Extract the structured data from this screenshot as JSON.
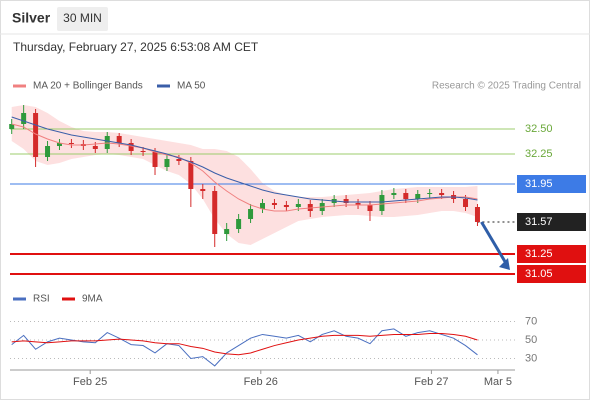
{
  "header": {
    "title": "Silver",
    "interval": "30 MIN",
    "timestamp": "Thursday, February 27, 2025 6:53:08 AM CET",
    "credit": "Research © 2025 Trading Central"
  },
  "chart_data": [
    {
      "type": "candlestick",
      "x": [
        -0.46,
        -0.39,
        -0.32,
        -0.25,
        -0.18,
        -0.11,
        -0.04,
        0.03,
        0.1,
        0.17,
        0.24,
        0.31,
        0.38,
        0.45,
        0.52,
        0.59,
        0.66,
        0.73,
        0.8,
        0.87,
        0.94,
        1.01,
        1.08,
        1.15,
        1.22,
        1.29,
        1.36,
        1.43,
        1.5,
        1.57,
        1.64,
        1.71,
        1.78,
        1.85,
        1.92,
        1.99,
        2.06,
        2.13,
        2.2,
        2.27
      ],
      "open": [
        32.5,
        32.55,
        32.66,
        32.22,
        32.33,
        32.36,
        32.35,
        32.33,
        32.3,
        32.43,
        32.36,
        32.28,
        32.27,
        32.12,
        32.2,
        32.18,
        31.9,
        31.88,
        31.45,
        31.5,
        31.6,
        31.7,
        31.76,
        31.74,
        31.72,
        31.75,
        31.68,
        31.76,
        31.8,
        31.76,
        31.74,
        31.68,
        31.84,
        31.86,
        31.8,
        31.85,
        31.86,
        31.84,
        31.8,
        31.72
      ],
      "high": [
        32.6,
        32.74,
        32.7,
        32.38,
        32.4,
        32.4,
        32.39,
        32.37,
        32.47,
        32.46,
        32.4,
        32.32,
        32.31,
        32.25,
        32.24,
        32.22,
        31.95,
        31.93,
        31.56,
        31.65,
        31.75,
        31.8,
        31.8,
        31.78,
        31.8,
        31.79,
        31.8,
        31.84,
        31.84,
        31.8,
        31.78,
        31.89,
        31.91,
        31.9,
        31.89,
        31.9,
        31.9,
        31.88,
        31.84,
        31.75
      ],
      "low": [
        32.45,
        32.5,
        32.12,
        32.18,
        32.29,
        32.31,
        32.29,
        32.26,
        32.26,
        32.32,
        32.24,
        32.23,
        32.04,
        32.08,
        32.14,
        31.72,
        31.8,
        31.32,
        31.38,
        31.46,
        31.56,
        31.66,
        31.7,
        31.68,
        31.68,
        31.62,
        31.64,
        31.72,
        31.72,
        31.7,
        31.58,
        31.64,
        31.8,
        31.76,
        31.76,
        31.81,
        31.8,
        31.76,
        31.68,
        31.53
      ],
      "close": [
        32.55,
        32.66,
        32.22,
        32.33,
        32.36,
        32.35,
        32.33,
        32.3,
        32.43,
        32.36,
        32.28,
        32.27,
        32.12,
        32.2,
        32.18,
        31.9,
        31.88,
        31.45,
        31.5,
        31.6,
        31.7,
        31.76,
        31.74,
        31.72,
        31.75,
        31.68,
        31.76,
        31.8,
        31.76,
        31.74,
        31.68,
        31.84,
        31.86,
        31.8,
        31.85,
        31.86,
        31.84,
        31.8,
        31.72,
        31.57
      ],
      "up_color": "#2f9a3c",
      "down_color": "#d42a2a",
      "series": [
        {
          "name": "MA 20 + Bollinger Bands",
          "color": "#f08080",
          "values": [
            32.55,
            32.52,
            32.45,
            32.4,
            32.36,
            32.34,
            32.34,
            32.35,
            32.36,
            32.35,
            32.33,
            32.31,
            32.27,
            32.24,
            32.22,
            32.16,
            32.08,
            31.97,
            31.88,
            31.8,
            31.74,
            31.7,
            31.68,
            31.68,
            31.7,
            31.71,
            31.72,
            31.73,
            31.74,
            31.74,
            31.74,
            31.75,
            31.76,
            31.77,
            31.78,
            31.8,
            31.81,
            31.82,
            31.82,
            31.8
          ]
        },
        {
          "name": "MA 50",
          "color": "#3a5ea8",
          "values": [
            32.62,
            32.58,
            32.54,
            32.5,
            32.47,
            32.44,
            32.42,
            32.4,
            32.38,
            32.36,
            32.34,
            32.31,
            32.28,
            32.25,
            32.21,
            32.17,
            32.12,
            32.06,
            32.01,
            31.97,
            31.93,
            31.89,
            31.86,
            31.84,
            31.82,
            31.8,
            31.79,
            31.78,
            31.77,
            31.77,
            31.77,
            31.77,
            31.78,
            31.79,
            31.8,
            31.81,
            31.82,
            31.82,
            31.81,
            31.79
          ]
        }
      ],
      "band": {
        "color": "#fdd8d8",
        "upper": [
          32.72,
          32.74,
          32.72,
          32.66,
          32.58,
          32.52,
          32.48,
          32.47,
          32.47,
          32.46,
          32.44,
          32.42,
          32.4,
          32.38,
          32.36,
          32.34,
          32.3,
          32.3,
          32.28,
          32.22,
          32.1,
          31.96,
          31.88,
          31.84,
          31.82,
          31.82,
          31.82,
          31.83,
          31.84,
          31.85,
          31.86,
          31.88,
          31.9,
          31.91,
          31.92,
          31.92,
          31.92,
          31.92,
          31.92,
          31.93
        ],
        "lower": [
          32.38,
          32.3,
          32.18,
          32.14,
          32.16,
          32.2,
          32.22,
          32.24,
          32.25,
          32.24,
          32.22,
          32.2,
          32.14,
          32.08,
          32.04,
          31.95,
          31.8,
          31.6,
          31.45,
          31.36,
          31.34,
          31.4,
          31.46,
          31.52,
          31.58,
          31.6,
          31.62,
          31.63,
          31.64,
          31.64,
          31.63,
          31.62,
          31.62,
          31.63,
          31.64,
          31.66,
          31.68,
          31.68,
          31.66,
          31.62
        ]
      },
      "levels": [
        {
          "value": 32.5,
          "label": "32.50",
          "color": "#9ccc6c",
          "kind": "text"
        },
        {
          "value": 32.25,
          "color": "#9ccc6c",
          "kind": "text"
        },
        {
          "value": 31.95,
          "color": "#3d7be6",
          "kind": "box"
        },
        {
          "value": 31.57,
          "color": "#222222",
          "kind": "last"
        },
        {
          "value": 31.25,
          "color": "#e01010",
          "kind": "box"
        },
        {
          "value": 31.05,
          "color": "#e01010",
          "kind": "box"
        }
      ],
      "forecast_color": "#2f5ea8",
      "xlim": [
        -0.47,
        2.49
      ],
      "xticks": [
        {
          "value": 0,
          "label": "Feb 25"
        },
        {
          "value": 1,
          "label": "Feb 26"
        },
        {
          "value": 2,
          "label": "Feb 27"
        },
        {
          "value": 2.39,
          "label": "Mar 5"
        }
      ],
      "ylim": [
        30.94,
        32.79
      ]
    },
    {
      "type": "line",
      "series": [
        {
          "name": "RSI",
          "color": "#4a6fc0",
          "values": [
            45,
            55,
            40,
            48,
            52,
            50,
            48,
            47,
            58,
            52,
            45,
            44,
            36,
            46,
            44,
            30,
            32,
            22,
            36,
            44,
            52,
            56,
            54,
            52,
            55,
            48,
            56,
            60,
            54,
            52,
            46,
            60,
            62,
            54,
            58,
            60,
            56,
            52,
            44,
            34
          ]
        },
        {
          "name": "9MA",
          "color": "#e01010",
          "values": [
            48,
            49,
            48,
            47,
            48,
            49,
            49,
            49,
            50,
            51,
            50,
            49,
            47,
            46,
            46,
            43,
            41,
            37,
            35,
            34,
            36,
            40,
            44,
            47,
            50,
            52,
            54,
            55,
            55,
            55,
            54,
            55,
            56,
            56,
            56,
            57,
            57,
            56,
            54,
            50
          ]
        }
      ],
      "ylim": [
        20,
        80
      ],
      "yticks": [
        30,
        50,
        70
      ]
    }
  ]
}
